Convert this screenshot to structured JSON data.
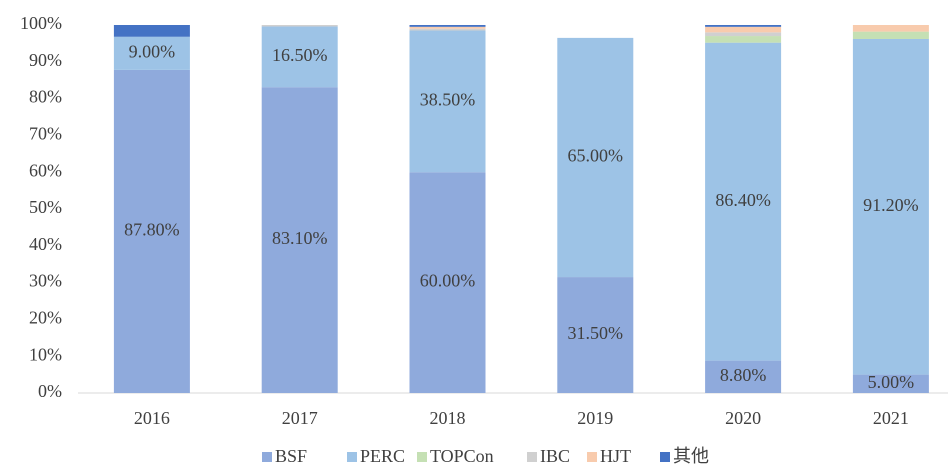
{
  "chart_data": {
    "type": "stacked_bar",
    "categories": [
      "2016",
      "2017",
      "2018",
      "2019",
      "2020",
      "2021"
    ],
    "series": [
      {
        "name": "BSF",
        "color": "#8faadc",
        "values": [
          87.8,
          83.1,
          60.0,
          31.5,
          8.8,
          5.0
        ],
        "value_labels": [
          "87.80%",
          "83.10%",
          "60.00%",
          "31.50%",
          "8.80%",
          "5.00%"
        ]
      },
      {
        "name": "PERC",
        "color": "#9dc3e6",
        "values": [
          9.0,
          16.5,
          38.5,
          65.0,
          86.4,
          91.2
        ],
        "value_labels": [
          "9.00%",
          "16.50%",
          "38.50%",
          "65.00%",
          "86.40%",
          "91.20%"
        ]
      },
      {
        "name": "TOPCon",
        "color": "#c5e0b4",
        "values": [
          0,
          0,
          0,
          0,
          1.8,
          2.0
        ]
      },
      {
        "name": "IBC",
        "color": "#d0d0d0",
        "values": [
          0,
          0.4,
          0.5,
          0,
          1.0,
          0
        ]
      },
      {
        "name": "HJT",
        "color": "#f8cbad",
        "values": [
          0,
          0,
          0.5,
          0,
          1.5,
          1.8
        ]
      },
      {
        "name": "其他",
        "color": "#4472c4",
        "values": [
          3.2,
          0,
          0.5,
          0,
          0.5,
          0
        ]
      }
    ],
    "ylim": [
      0,
      100
    ],
    "yticks": [
      {
        "value": 0,
        "label": "0%"
      },
      {
        "value": 10,
        "label": "10%"
      },
      {
        "value": 20,
        "label": "20%"
      },
      {
        "value": 30,
        "label": "30%"
      },
      {
        "value": 40,
        "label": "40%"
      },
      {
        "value": 50,
        "label": "50%"
      },
      {
        "value": 60,
        "label": "60%"
      },
      {
        "value": 70,
        "label": "70%"
      },
      {
        "value": 80,
        "label": "80%"
      },
      {
        "value": 90,
        "label": "90%"
      },
      {
        "value": 100,
        "label": "100%"
      }
    ],
    "grid": false,
    "legend": "bottom"
  }
}
